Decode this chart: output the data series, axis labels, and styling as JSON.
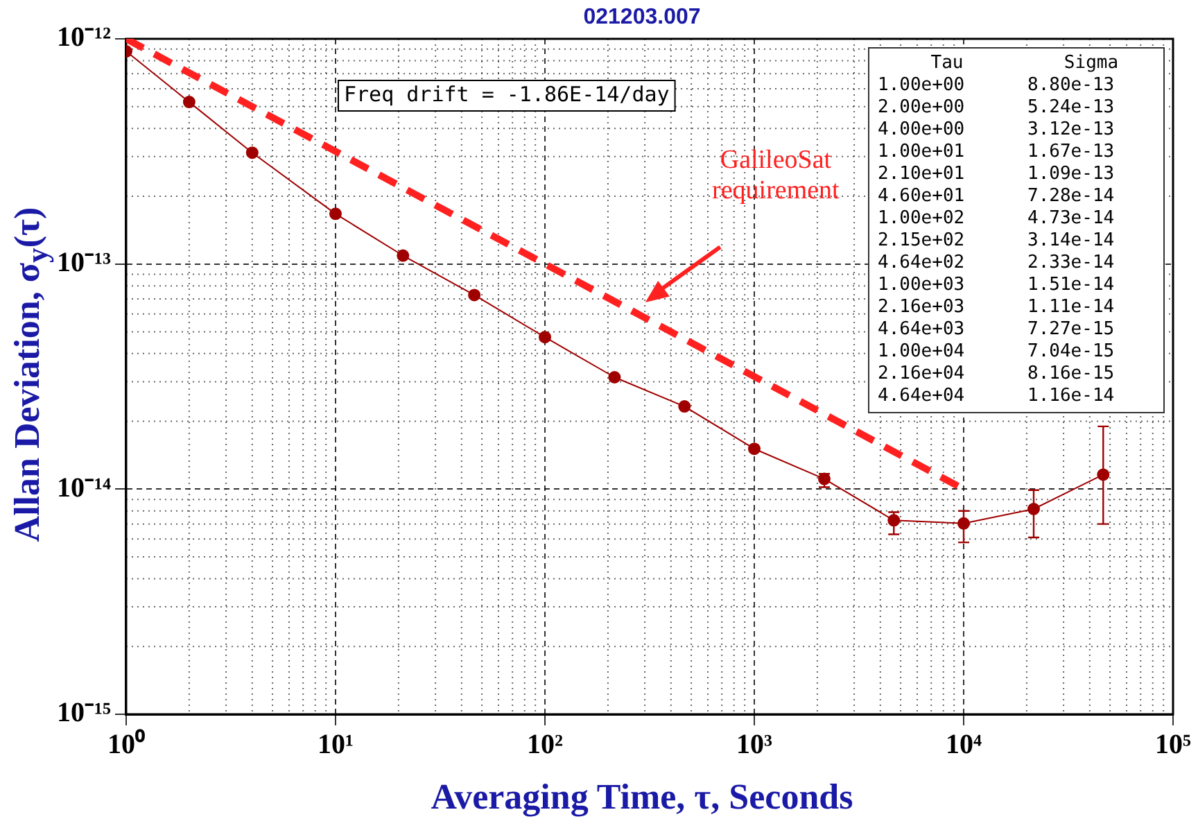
{
  "chart_data": {
    "type": "line",
    "title": "021203.007",
    "xlabel": "Averaging Time, τ, Seconds",
    "ylabel": "Allan Deviation, σ$_{y}$(τ)",
    "annotations": [
      "Freq drift = -1.86E-14/day",
      "Tau",
      "Sigma",
      "1.00e+00",
      "8.80e-13",
      "2.00e+00",
      "5.24e-13",
      "4.00e+00",
      "3.12e-13",
      "1.00e+01",
      "1.67e-13",
      "2.10e+01",
      "1.09e-13",
      "4.60e+01",
      "7.28e-14",
      "1.00e+02",
      "4.73e-14",
      "2.15e+02",
      "3.14e-14",
      "4.64e+02",
      "2.33e-14",
      "1.00e+03",
      "1.51e-14",
      "2.16e+03",
      "1.11e-14",
      "4.64e+03",
      "7.27e-15",
      "1.00e+04",
      "7.04e-15",
      "2.16e+04",
      "8.16e-15",
      "4.64e+04",
      "1.16e-14"
    ],
    "log": "xy",
    "grid": true,
    "legend": false,
    "marker": "circle",
    "line_style": "solid",
    "xlim": [
      1,
      100000
    ],
    "xticks": [
      {
        "value": 1,
        "label": "10⁰"
      },
      {
        "value": 10,
        "label": "10¹"
      },
      {
        "value": 100,
        "label": "10²"
      },
      {
        "value": 1000,
        "label": "10³"
      },
      {
        "value": 10000,
        "label": "10⁴"
      },
      {
        "value": 100000,
        "label": "10⁵"
      }
    ],
    "ylim": [
      1e-15,
      1e-12
    ],
    "yticks": [
      {
        "value": 1e-15,
        "label": "10⁻¹⁵"
      },
      {
        "value": 1e-14,
        "label": "10⁻¹⁴"
      },
      {
        "value": 1e-13,
        "label": "10⁻¹³"
      },
      {
        "value": 1e-12,
        "label": "10⁻¹²"
      }
    ],
    "series": [
      {
        "color": "#a00000",
        "x": [
          1,
          2,
          4,
          10,
          21,
          46,
          100,
          215,
          464,
          1000,
          2160,
          4640,
          10000,
          21600,
          46400
        ],
        "values": [
          8.8e-13,
          5.24e-13,
          3.12e-13,
          1.67e-13,
          1.09e-13,
          7.28e-14,
          4.73e-14,
          3.14e-14,
          2.33e-14,
          1.51e-14,
          1.11e-14,
          7.27e-15,
          7.04e-15,
          8.16e-15,
          1.16e-14
        ],
        "errors": [
          null,
          null,
          null,
          null,
          null,
          null,
          null,
          null,
          null,
          null,
          [
            1.02e-14,
            1.17e-14
          ],
          [
            6.3e-15,
            7.9e-15
          ],
          [
            5.8e-15,
            8e-15
          ],
          [
            6.1e-15,
            9.9e-15
          ],
          [
            7e-15,
            1.9e-14
          ]
        ]
      },
      {
        "name": "GalileoSat requirement",
        "color": "#ff2020",
        "type": "line",
        "marker": "none",
        "line_style": "dashed",
        "x": [
          1,
          10000
        ],
        "values": [
          1e-12,
          1e-14
        ]
      }
    ]
  }
}
